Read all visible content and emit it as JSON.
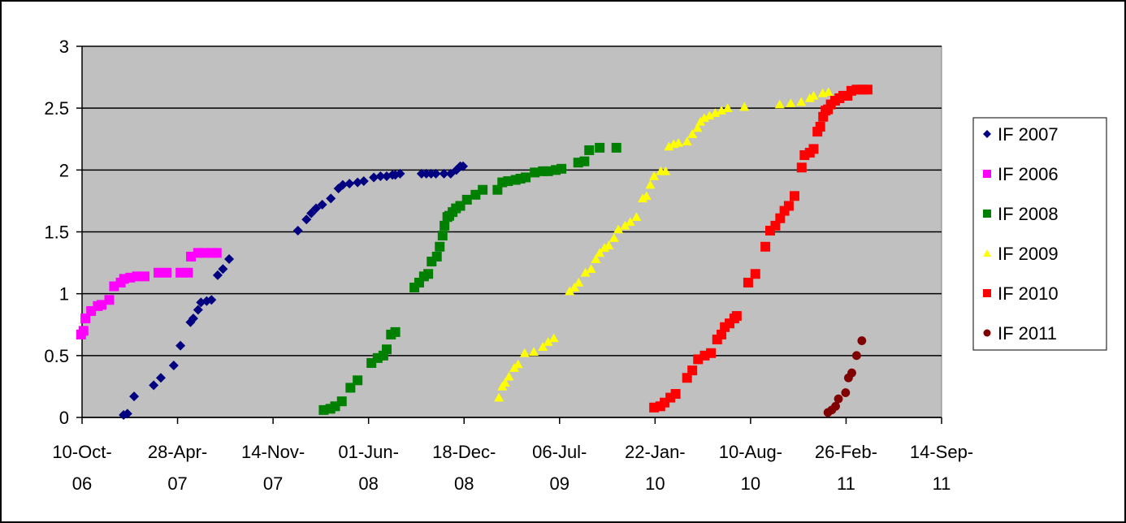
{
  "chart_data": {
    "type": "scatter",
    "title": "",
    "xlabel": "",
    "ylabel": "",
    "ylim": [
      0,
      3
    ],
    "yticks": [
      "0",
      "0.5",
      "1",
      "1.5",
      "2",
      "2.5",
      "3"
    ],
    "xlim": [
      "2006-10-10",
      "2011-09-14"
    ],
    "xticks": [
      {
        "date": "2006-10-10",
        "line1": "10-Oct-",
        "line2": "06"
      },
      {
        "date": "2007-04-28",
        "line1": "28-Apr-",
        "line2": "07"
      },
      {
        "date": "2007-11-14",
        "line1": "14-Nov-",
        "line2": "07"
      },
      {
        "date": "2008-06-01",
        "line1": "01-Jun-",
        "line2": "08"
      },
      {
        "date": "2008-12-18",
        "line1": "18-Dec-",
        "line2": "08"
      },
      {
        "date": "2009-07-06",
        "line1": "06-Jul-",
        "line2": "09"
      },
      {
        "date": "2010-01-22",
        "line1": "22-Jan-",
        "line2": "10"
      },
      {
        "date": "2010-08-10",
        "line1": "10-Aug-",
        "line2": "10"
      },
      {
        "date": "2011-02-26",
        "line1": "26-Feb-",
        "line2": "11"
      },
      {
        "date": "2011-09-14",
        "line1": "14-Sep-",
        "line2": "11"
      }
    ],
    "grid": true,
    "plot_background": "#c0c0c0",
    "legend_position": "right",
    "series": [
      {
        "name": "IF 2007",
        "marker": "diamond",
        "color": "#000080",
        "points": [
          [
            "2007-01-05",
            0.02
          ],
          [
            "2007-01-13",
            0.03
          ],
          [
            "2007-01-27",
            0.17
          ],
          [
            "2007-03-09",
            0.26
          ],
          [
            "2007-03-24",
            0.32
          ],
          [
            "2007-04-20",
            0.42
          ],
          [
            "2007-05-04",
            0.58
          ],
          [
            "2007-05-25",
            0.77
          ],
          [
            "2007-05-31",
            0.8
          ],
          [
            "2007-06-10",
            0.87
          ],
          [
            "2007-06-16",
            0.93
          ],
          [
            "2007-06-28",
            0.94
          ],
          [
            "2007-07-08",
            0.95
          ],
          [
            "2007-07-21",
            1.15
          ],
          [
            "2007-08-01",
            1.2
          ],
          [
            "2007-08-14",
            1.28
          ],
          [
            "2008-01-05",
            1.51
          ],
          [
            "2008-01-23",
            1.6
          ],
          [
            "2008-02-02",
            1.65
          ],
          [
            "2008-02-12",
            1.69
          ],
          [
            "2008-02-25",
            1.72
          ],
          [
            "2008-03-14",
            1.77
          ],
          [
            "2008-03-30",
            1.85
          ],
          [
            "2008-04-08",
            1.88
          ],
          [
            "2008-04-22",
            1.89
          ],
          [
            "2008-05-09",
            1.9
          ],
          [
            "2008-05-22",
            1.91
          ],
          [
            "2008-06-12",
            1.94
          ],
          [
            "2008-06-26",
            1.95
          ],
          [
            "2008-07-09",
            1.95
          ],
          [
            "2008-07-21",
            1.96
          ],
          [
            "2008-07-27",
            1.96
          ],
          [
            "2008-08-06",
            1.97
          ],
          [
            "2008-09-20",
            1.97
          ],
          [
            "2008-09-30",
            1.97
          ],
          [
            "2008-10-10",
            1.97
          ],
          [
            "2008-10-20",
            1.97
          ],
          [
            "2008-11-06",
            1.97
          ],
          [
            "2008-11-20",
            1.97
          ],
          [
            "2008-12-02",
            2.0
          ],
          [
            "2008-12-10",
            2.03
          ],
          [
            "2008-12-16",
            2.03
          ]
        ]
      },
      {
        "name": "IF 2006",
        "marker": "square",
        "color": "#ff00ff",
        "points": [
          [
            "2006-10-08",
            0.67
          ],
          [
            "2006-10-13",
            0.7
          ],
          [
            "2006-10-17",
            0.8
          ],
          [
            "2006-10-29",
            0.86
          ],
          [
            "2006-11-12",
            0.9
          ],
          [
            "2006-11-20",
            0.91
          ],
          [
            "2006-12-06",
            0.95
          ],
          [
            "2006-12-16",
            1.06
          ],
          [
            "2006-12-30",
            1.09
          ],
          [
            "2007-01-06",
            1.12
          ],
          [
            "2007-01-19",
            1.13
          ],
          [
            "2007-02-02",
            1.14
          ],
          [
            "2007-02-18",
            1.14
          ],
          [
            "2007-03-19",
            1.17
          ],
          [
            "2007-04-05",
            1.17
          ],
          [
            "2007-05-04",
            1.17
          ],
          [
            "2007-05-20",
            1.17
          ],
          [
            "2007-05-26",
            1.3
          ],
          [
            "2007-06-10",
            1.33
          ],
          [
            "2007-06-23",
            1.33
          ],
          [
            "2007-07-08",
            1.33
          ],
          [
            "2007-07-19",
            1.33
          ]
        ]
      },
      {
        "name": "IF 2008",
        "marker": "square",
        "color": "#008000",
        "points": [
          [
            "2008-02-28",
            0.06
          ],
          [
            "2008-03-13",
            0.07
          ],
          [
            "2008-03-23",
            0.09
          ],
          [
            "2008-04-06",
            0.13
          ],
          [
            "2008-04-24",
            0.24
          ],
          [
            "2008-05-09",
            0.3
          ],
          [
            "2008-06-07",
            0.44
          ],
          [
            "2008-06-20",
            0.48
          ],
          [
            "2008-07-02",
            0.5
          ],
          [
            "2008-07-09",
            0.55
          ],
          [
            "2008-07-18",
            0.67
          ],
          [
            "2008-07-27",
            0.69
          ],
          [
            "2008-09-05",
            1.05
          ],
          [
            "2008-09-15",
            1.09
          ],
          [
            "2008-09-25",
            1.14
          ],
          [
            "2008-10-04",
            1.16
          ],
          [
            "2008-10-11",
            1.26
          ],
          [
            "2008-10-22",
            1.3
          ],
          [
            "2008-10-28",
            1.38
          ],
          [
            "2008-11-03",
            1.47
          ],
          [
            "2008-11-07",
            1.55
          ],
          [
            "2008-11-13",
            1.62
          ],
          [
            "2008-11-17",
            1.63
          ],
          [
            "2008-11-24",
            1.66
          ],
          [
            "2008-12-01",
            1.69
          ],
          [
            "2008-12-10",
            1.71
          ],
          [
            "2008-12-24",
            1.76
          ],
          [
            "2009-01-11",
            1.8
          ],
          [
            "2009-01-26",
            1.84
          ],
          [
            "2009-02-26",
            1.84
          ],
          [
            "2009-03-08",
            1.9
          ],
          [
            "2009-03-20",
            1.91
          ],
          [
            "2009-04-05",
            1.92
          ],
          [
            "2009-04-15",
            1.93
          ],
          [
            "2009-04-26",
            1.94
          ],
          [
            "2009-05-15",
            1.98
          ],
          [
            "2009-06-01",
            1.99
          ],
          [
            "2009-06-12",
            1.99
          ],
          [
            "2009-06-28",
            2.0
          ],
          [
            "2009-07-10",
            2.01
          ],
          [
            "2009-08-14",
            2.06
          ],
          [
            "2009-08-27",
            2.07
          ],
          [
            "2009-09-06",
            2.16
          ],
          [
            "2009-09-28",
            2.18
          ],
          [
            "2009-11-02",
            2.18
          ]
        ]
      },
      {
        "name": "IF 2009",
        "marker": "triangle",
        "color": "#ffff00",
        "points": [
          [
            "2009-03-01",
            0.16
          ],
          [
            "2009-03-08",
            0.25
          ],
          [
            "2009-03-14",
            0.28
          ],
          [
            "2009-03-22",
            0.33
          ],
          [
            "2009-04-02",
            0.4
          ],
          [
            "2009-04-10",
            0.43
          ],
          [
            "2009-04-24",
            0.52
          ],
          [
            "2009-05-13",
            0.53
          ],
          [
            "2009-06-01",
            0.57
          ],
          [
            "2009-06-12",
            0.61
          ],
          [
            "2009-06-24",
            0.64
          ],
          [
            "2009-07-27",
            1.02
          ],
          [
            "2009-08-06",
            1.05
          ],
          [
            "2009-08-15",
            1.09
          ],
          [
            "2009-08-29",
            1.17
          ],
          [
            "2009-09-10",
            1.2
          ],
          [
            "2009-09-20",
            1.28
          ],
          [
            "2009-09-28",
            1.33
          ],
          [
            "2009-10-08",
            1.37
          ],
          [
            "2009-10-17",
            1.39
          ],
          [
            "2009-10-28",
            1.45
          ],
          [
            "2009-11-06",
            1.52
          ],
          [
            "2009-11-20",
            1.55
          ],
          [
            "2009-12-01",
            1.58
          ],
          [
            "2009-12-14",
            1.62
          ],
          [
            "2009-12-27",
            1.77
          ],
          [
            "2010-01-04",
            1.79
          ],
          [
            "2010-01-12",
            1.88
          ],
          [
            "2010-01-20",
            1.95
          ],
          [
            "2010-02-03",
            1.99
          ],
          [
            "2010-02-13",
            1.99
          ],
          [
            "2010-02-20",
            2.19
          ],
          [
            "2010-03-02",
            2.21
          ],
          [
            "2010-03-12",
            2.22
          ],
          [
            "2010-03-30",
            2.23
          ],
          [
            "2010-04-10",
            2.29
          ],
          [
            "2010-04-21",
            2.34
          ],
          [
            "2010-04-27",
            2.39
          ],
          [
            "2010-05-05",
            2.42
          ],
          [
            "2010-05-16",
            2.44
          ],
          [
            "2010-05-28",
            2.46
          ],
          [
            "2010-06-10",
            2.48
          ],
          [
            "2010-06-23",
            2.5
          ],
          [
            "2010-07-28",
            2.51
          ],
          [
            "2010-10-10",
            2.53
          ],
          [
            "2010-11-02",
            2.54
          ],
          [
            "2010-11-24",
            2.55
          ],
          [
            "2010-12-12",
            2.58
          ],
          [
            "2010-12-20",
            2.6
          ],
          [
            "2011-01-08",
            2.62
          ],
          [
            "2011-01-20",
            2.63
          ]
        ]
      },
      {
        "name": "IF 2010",
        "marker": "square",
        "color": "#ff0000",
        "points": [
          [
            "2010-01-20",
            0.08
          ],
          [
            "2010-02-02",
            0.09
          ],
          [
            "2010-02-11",
            0.12
          ],
          [
            "2010-02-23",
            0.16
          ],
          [
            "2010-03-06",
            0.19
          ],
          [
            "2010-03-30",
            0.32
          ],
          [
            "2010-04-10",
            0.38
          ],
          [
            "2010-04-22",
            0.47
          ],
          [
            "2010-05-06",
            0.5
          ],
          [
            "2010-05-19",
            0.52
          ],
          [
            "2010-06-01",
            0.63
          ],
          [
            "2010-06-10",
            0.67
          ],
          [
            "2010-06-17",
            0.73
          ],
          [
            "2010-06-27",
            0.76
          ],
          [
            "2010-07-07",
            0.8
          ],
          [
            "2010-07-12",
            0.82
          ],
          [
            "2010-08-05",
            1.09
          ],
          [
            "2010-08-20",
            1.16
          ],
          [
            "2010-09-10",
            1.38
          ],
          [
            "2010-09-20",
            1.51
          ],
          [
            "2010-10-01",
            1.55
          ],
          [
            "2010-10-11",
            1.61
          ],
          [
            "2010-10-20",
            1.67
          ],
          [
            "2010-10-29",
            1.71
          ],
          [
            "2010-11-10",
            1.79
          ],
          [
            "2010-11-25",
            2.02
          ],
          [
            "2010-12-01",
            2.12
          ],
          [
            "2010-12-12",
            2.14
          ],
          [
            "2010-12-20",
            2.17
          ],
          [
            "2010-12-28",
            2.31
          ],
          [
            "2011-01-03",
            2.35
          ],
          [
            "2011-01-09",
            2.43
          ],
          [
            "2011-01-14",
            2.48
          ],
          [
            "2011-01-19",
            2.49
          ],
          [
            "2011-01-25",
            2.53
          ],
          [
            "2011-02-03",
            2.56
          ],
          [
            "2011-02-12",
            2.58
          ],
          [
            "2011-02-20",
            2.6
          ],
          [
            "2011-03-01",
            2.6
          ],
          [
            "2011-03-09",
            2.64
          ],
          [
            "2011-03-20",
            2.65
          ],
          [
            "2011-04-01",
            2.65
          ],
          [
            "2011-04-12",
            2.65
          ]
        ]
      },
      {
        "name": "IF 2011",
        "marker": "circle",
        "color": "#800000",
        "points": [
          [
            "2011-01-19",
            0.04
          ],
          [
            "2011-01-27",
            0.06
          ],
          [
            "2011-02-04",
            0.09
          ],
          [
            "2011-02-10",
            0.15
          ],
          [
            "2011-02-25",
            0.2
          ],
          [
            "2011-03-03",
            0.32
          ],
          [
            "2011-03-10",
            0.36
          ],
          [
            "2011-03-20",
            0.5
          ],
          [
            "2011-03-31",
            0.62
          ]
        ]
      }
    ]
  }
}
